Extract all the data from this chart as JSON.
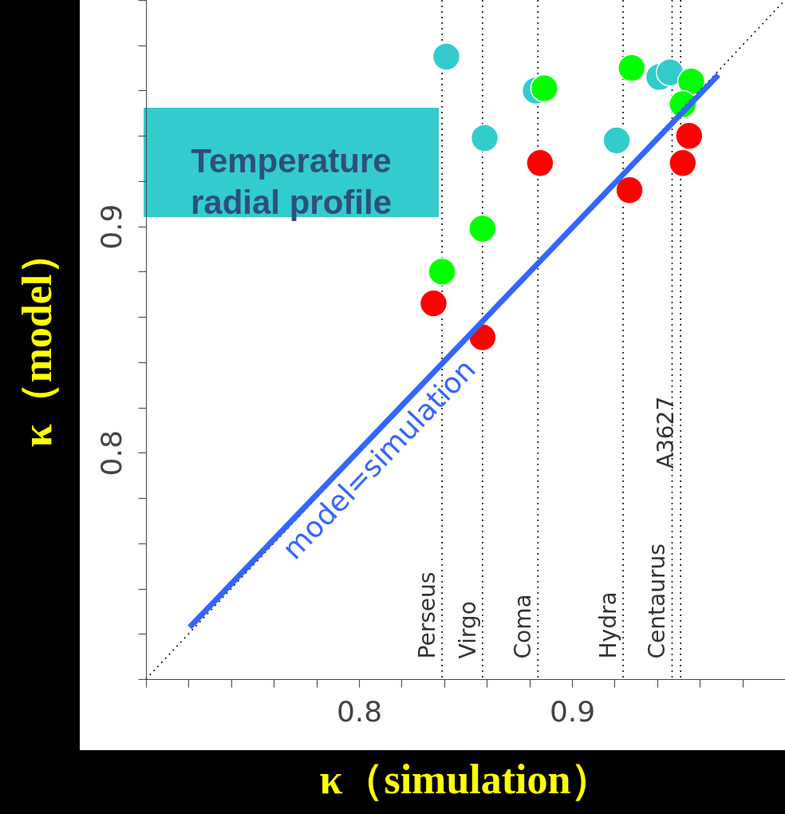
{
  "chart_data": {
    "type": "scatter",
    "xlabel": "κ（simulation）",
    "ylabel": "κ（model）",
    "xlim": [
      0.7,
      1.0
    ],
    "ylim": [
      0.7,
      1.0
    ],
    "xticks": [
      {
        "value": 0.7,
        "label": null
      },
      {
        "value": 0.72,
        "label": null
      },
      {
        "value": 0.74,
        "label": null
      },
      {
        "value": 0.76,
        "label": null
      },
      {
        "value": 0.78,
        "label": null
      },
      0.8,
      {
        "value": 0.82,
        "label": null
      },
      {
        "value": 0.84,
        "label": null
      },
      {
        "value": 0.86,
        "label": null
      },
      {
        "value": 0.88,
        "label": null
      },
      0.9,
      {
        "value": 0.92,
        "label": null
      },
      {
        "value": 0.94,
        "label": null
      },
      {
        "value": 0.96,
        "label": null
      },
      {
        "value": 0.98,
        "label": null
      },
      {
        "value": 1.0,
        "label": null
      }
    ],
    "yticks": [
      {
        "value": 0.7,
        "label": null
      },
      {
        "value": 0.72,
        "label": null
      },
      {
        "value": 0.74,
        "label": null
      },
      {
        "value": 0.76,
        "label": null
      },
      {
        "value": 0.78,
        "label": null
      },
      0.8,
      {
        "value": 0.82,
        "label": null
      },
      {
        "value": 0.84,
        "label": null
      },
      {
        "value": 0.86,
        "label": null
      },
      {
        "value": 0.88,
        "label": null
      },
      0.9,
      {
        "value": 0.92,
        "label": null
      },
      {
        "value": 0.94,
        "label": null
      },
      {
        "value": 0.96,
        "label": null
      },
      {
        "value": 0.98,
        "label": null
      },
      {
        "value": 1.0,
        "label": null
      }
    ],
    "marker": "circle",
    "series": [
      {
        "color": "#33cccc",
        "x": [
          0.841,
          0.859,
          0.883,
          0.921,
          0.941,
          0.946
        ],
        "values": [
          0.975,
          0.939,
          0.96,
          0.938,
          0.966,
          0.968
        ]
      },
      {
        "color": "#00ff00",
        "x": [
          0.839,
          0.858,
          0.887,
          0.928,
          0.956,
          0.952
        ],
        "values": [
          0.88,
          0.899,
          0.961,
          0.97,
          0.964,
          0.954
        ]
      },
      {
        "color": "#ff0000",
        "x": [
          0.835,
          0.858,
          0.885,
          0.927,
          0.955,
          0.952
        ],
        "values": [
          0.866,
          0.851,
          0.928,
          0.916,
          0.94,
          0.928
        ]
      },
      {
        "type": "line",
        "marker": "none",
        "line_style": "dotted",
        "color": "#000000",
        "x": [
          0.7,
          1.0
        ],
        "values": [
          0.7,
          1.0
        ]
      },
      {
        "type": "line",
        "marker": "none",
        "line_style": "solid",
        "name": "model=simulation",
        "color": "#3366ff",
        "x": [
          0.7205,
          0.9687
        ],
        "values": [
          0.7229,
          0.9669
        ]
      }
    ],
    "ref_lines": [
      {
        "axis": "x",
        "value": 0.839,
        "label": "Perseus",
        "line_style": "dotted",
        "color": "#000000"
      },
      {
        "axis": "x",
        "value": 0.858,
        "label": "Virgo",
        "line_style": "dotted",
        "color": "#000000"
      },
      {
        "axis": "x",
        "value": 0.884,
        "label": "Coma",
        "line_style": "dotted",
        "color": "#000000"
      },
      {
        "axis": "x",
        "value": 0.924,
        "label": "Hydra",
        "line_style": "dotted",
        "color": "#000000"
      },
      {
        "axis": "x",
        "value": 0.947,
        "label": "Centaurus",
        "line_style": "dotted",
        "color": "#000000"
      },
      {
        "axis": "x",
        "value": 0.951,
        "label": "A3627",
        "line_style": "dotted",
        "color": "#000000"
      }
    ],
    "annotations": [
      "Temperature\nradial  profile"
    ]
  }
}
